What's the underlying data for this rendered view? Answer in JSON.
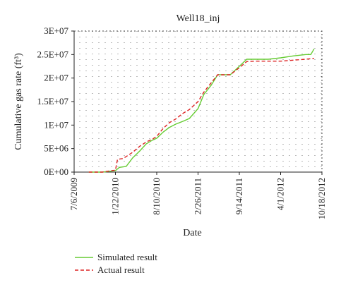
{
  "chart_data": {
    "type": "line",
    "title": "Well18_inj",
    "xlabel": "Date",
    "ylabel": "Cumulative gas rate (ft³)",
    "x_ticks": [
      "7/6/2009",
      "1/22/2010",
      "8/10/2010",
      "2/26/2011",
      "9/14/2011",
      "4/1/2012",
      "10/18/2012"
    ],
    "y_ticks": [
      "0E+00",
      "5E+06",
      "1E+07",
      "1.5E+07",
      "2E+07",
      "2.5E+07",
      "3E+07"
    ],
    "xlim": [
      "2009-07-06",
      "2012-10-18"
    ],
    "ylim": [
      0,
      30000000
    ],
    "grid": "dotted",
    "legend_placement": "bottom-left",
    "series": [
      {
        "name": "Simulated result",
        "color": "#66cc33",
        "dash": "solid",
        "points": [
          [
            "2009-09-15",
            0
          ],
          [
            "2009-11-20",
            0
          ],
          [
            "2010-01-01",
            200000
          ],
          [
            "2010-01-22",
            300000
          ],
          [
            "2010-02-10",
            1000000
          ],
          [
            "2010-03-15",
            1200000
          ],
          [
            "2010-04-15",
            3000000
          ],
          [
            "2010-05-20",
            4500000
          ],
          [
            "2010-06-20",
            6000000
          ],
          [
            "2010-07-20",
            6800000
          ],
          [
            "2010-08-10",
            7200000
          ],
          [
            "2010-09-10",
            8500000
          ],
          [
            "2010-10-10",
            9500000
          ],
          [
            "2010-11-10",
            10200000
          ],
          [
            "2010-12-15",
            10800000
          ],
          [
            "2011-01-15",
            11400000
          ],
          [
            "2011-02-26",
            13500000
          ],
          [
            "2011-03-26",
            16500000
          ],
          [
            "2011-05-01",
            18500000
          ],
          [
            "2011-06-01",
            20700000
          ],
          [
            "2011-07-01",
            20700000
          ],
          [
            "2011-08-01",
            20700000
          ],
          [
            "2011-09-14",
            22500000
          ],
          [
            "2011-10-20",
            24000000
          ],
          [
            "2011-12-01",
            24000000
          ],
          [
            "2012-02-01",
            24000000
          ],
          [
            "2012-04-01",
            24300000
          ],
          [
            "2012-06-01",
            24700000
          ],
          [
            "2012-08-01",
            25000000
          ],
          [
            "2012-08-25",
            25000000
          ],
          [
            "2012-09-10",
            26200000
          ]
        ]
      },
      {
        "name": "Actual result",
        "color": "#dd2222",
        "dash": "dashed",
        "points": [
          [
            "2009-09-15",
            0
          ],
          [
            "2009-11-20",
            0
          ],
          [
            "2010-01-01",
            300000
          ],
          [
            "2010-01-22",
            400000
          ],
          [
            "2010-02-01",
            2700000
          ],
          [
            "2010-03-01",
            2900000
          ],
          [
            "2010-04-15",
            4200000
          ],
          [
            "2010-05-20",
            5500000
          ],
          [
            "2010-06-20",
            6400000
          ],
          [
            "2010-07-20",
            7000000
          ],
          [
            "2010-08-10",
            7600000
          ],
          [
            "2010-09-10",
            9300000
          ],
          [
            "2010-10-10",
            10500000
          ],
          [
            "2010-11-10",
            11300000
          ],
          [
            "2010-12-15",
            12500000
          ],
          [
            "2011-01-15",
            13300000
          ],
          [
            "2011-02-26",
            15000000
          ],
          [
            "2011-03-26",
            17000000
          ],
          [
            "2011-05-01",
            19000000
          ],
          [
            "2011-06-01",
            20700000
          ],
          [
            "2011-07-01",
            20700000
          ],
          [
            "2011-08-01",
            20700000
          ],
          [
            "2011-09-14",
            22200000
          ],
          [
            "2011-10-20",
            23500000
          ],
          [
            "2011-12-01",
            23600000
          ],
          [
            "2012-02-01",
            23600000
          ],
          [
            "2012-04-01",
            23600000
          ],
          [
            "2012-06-01",
            23800000
          ],
          [
            "2012-08-01",
            24000000
          ],
          [
            "2012-09-10",
            24200000
          ]
        ]
      }
    ]
  }
}
